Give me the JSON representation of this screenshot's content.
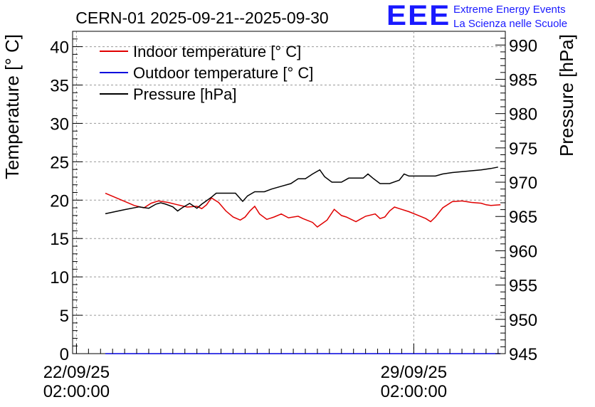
{
  "chart_data": {
    "type": "line",
    "title": "CERN-01 2025-09-21--2025-09-30",
    "ylabel": "Temperature [° C]",
    "y2label": "Pressure [hPa]",
    "ylim": [
      0,
      42
    ],
    "y2lim": [
      945,
      992
    ],
    "xlim_days": [
      -0.08,
      8.9
    ],
    "yticks": [
      0,
      5,
      10,
      15,
      20,
      25,
      30,
      35,
      40
    ],
    "y2ticks": [
      945,
      950,
      955,
      960,
      965,
      970,
      975,
      980,
      985,
      990
    ],
    "xticks": [
      {
        "day": 0,
        "date": "22/09/25",
        "time": "02:00:00"
      },
      {
        "day": 7,
        "date": "29/09/25",
        "time": "02:00:00"
      }
    ],
    "grid": true,
    "legend": "top-left",
    "series": [
      {
        "name": "Indoor temperature [° C]",
        "axis": "left",
        "color": "#e00000",
        "x": [
          0.6,
          0.9,
          1.2,
          1.4,
          1.55,
          1.7,
          1.9,
          2.1,
          2.3,
          2.5,
          2.6,
          2.7,
          2.8,
          2.95,
          3.1,
          3.25,
          3.4,
          3.5,
          3.6,
          3.7,
          3.8,
          3.95,
          4.1,
          4.25,
          4.4,
          4.6,
          4.7,
          4.9,
          5.0,
          5.2,
          5.35,
          5.5,
          5.6,
          5.8,
          6.0,
          6.2,
          6.3,
          6.4,
          6.5,
          6.6,
          6.7,
          6.9,
          7.1,
          7.25,
          7.35,
          7.45,
          7.6,
          7.8,
          8.0,
          8.2,
          8.4,
          8.5,
          8.6,
          8.8
        ],
        "y": [
          20.9,
          20.1,
          19.3,
          19.0,
          19.6,
          19.9,
          19.7,
          19.4,
          19.1,
          19.2,
          18.9,
          19.4,
          20.3,
          19.7,
          18.6,
          17.8,
          17.4,
          17.8,
          18.6,
          19.2,
          18.2,
          17.5,
          17.8,
          18.2,
          17.7,
          17.9,
          17.6,
          17.1,
          16.5,
          17.4,
          18.8,
          18.0,
          17.8,
          17.2,
          17.9,
          18.2,
          17.6,
          17.8,
          18.6,
          19.1,
          18.9,
          18.5,
          18.0,
          17.6,
          17.2,
          17.8,
          19.0,
          19.8,
          19.9,
          19.7,
          19.6,
          19.4,
          19.3,
          19.4
        ]
      },
      {
        "name": "Outdoor temperature [° C]",
        "axis": "left",
        "color": "#0000dd",
        "x": [
          0.6,
          8.8
        ],
        "y": [
          0,
          0
        ]
      },
      {
        "name": "Pressure [hPa]",
        "axis": "right",
        "color": "#000000",
        "x": [
          0.6,
          1.0,
          1.3,
          1.5,
          1.65,
          1.75,
          1.85,
          2.0,
          2.1,
          2.2,
          2.35,
          2.5,
          2.6,
          2.7,
          2.8,
          2.9,
          3.1,
          3.3,
          3.45,
          3.55,
          3.7,
          3.9,
          4.05,
          4.25,
          4.45,
          4.6,
          4.75,
          4.9,
          5.05,
          5.15,
          5.3,
          5.5,
          5.65,
          5.8,
          5.95,
          6.05,
          6.15,
          6.3,
          6.5,
          6.7,
          6.8,
          6.9,
          7.1,
          7.25,
          7.45,
          7.6,
          7.8,
          8.1,
          8.4,
          8.6,
          8.75
        ],
        "y": [
          965.4,
          966.0,
          966.4,
          966.2,
          966.8,
          967.0,
          966.8,
          966.4,
          965.8,
          966.3,
          966.9,
          966.2,
          966.8,
          967.3,
          967.8,
          968.4,
          968.4,
          968.4,
          967.2,
          968.0,
          968.6,
          968.6,
          969.0,
          969.4,
          969.8,
          970.5,
          970.5,
          971.2,
          971.8,
          970.8,
          970.0,
          970.0,
          970.6,
          970.6,
          970.6,
          971.2,
          970.6,
          969.8,
          969.8,
          970.3,
          971.2,
          970.9,
          970.9,
          970.9,
          970.9,
          971.2,
          971.4,
          971.6,
          971.8,
          972.0,
          972.2
        ]
      }
    ]
  },
  "branding": {
    "mark": "EEE",
    "line1": "Extreme Energy Events",
    "line2": "La Scienza nelle Scuole"
  }
}
